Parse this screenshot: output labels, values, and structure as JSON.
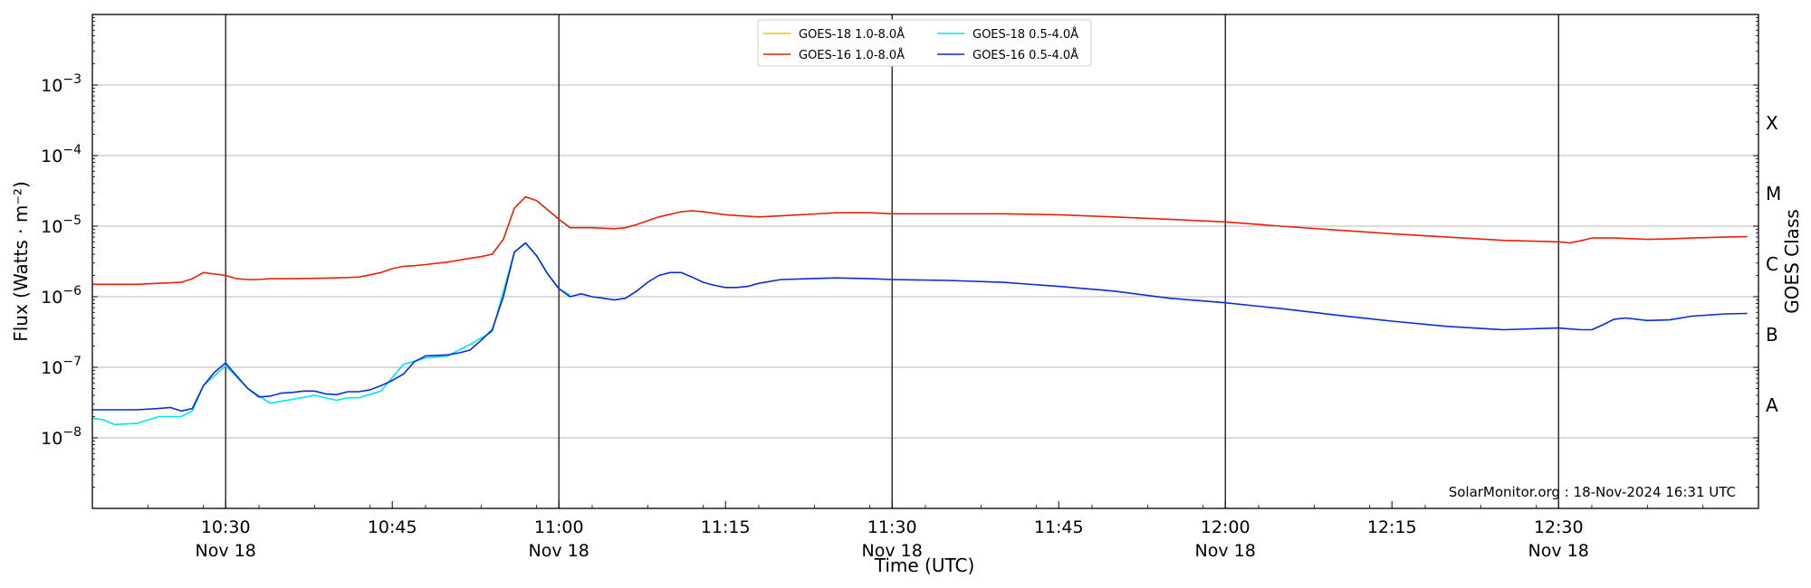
{
  "chart_data": {
    "type": "line",
    "xlabel": "Time (UTC)",
    "ylabel": "Flux (Watts · m⁻²)",
    "y2label": "GOES Class",
    "yscale": "log",
    "ylim": [
      1e-09,
      0.01
    ],
    "xlim": [
      "10:18",
      "12:48"
    ],
    "grid": "horizontal",
    "legend_position": "top-center",
    "x_ticks": [
      {
        "time": "10:30",
        "label": "10:30",
        "date": "Nov 18"
      },
      {
        "time": "10:45",
        "label": "10:45",
        "date": ""
      },
      {
        "time": "11:00",
        "label": "11:00",
        "date": "Nov 18"
      },
      {
        "time": "11:15",
        "label": "11:15",
        "date": ""
      },
      {
        "time": "11:30",
        "label": "11:30",
        "date": "Nov 18"
      },
      {
        "time": "11:45",
        "label": "11:45",
        "date": ""
      },
      {
        "time": "12:00",
        "label": "12:00",
        "date": "Nov 18"
      },
      {
        "time": "12:15",
        "label": "12:15",
        "date": ""
      },
      {
        "time": "12:30",
        "label": "12:30",
        "date": "Nov 18"
      }
    ],
    "y_ticks": [
      {
        "value": 1e-08,
        "exp": "−8"
      },
      {
        "value": 1e-07,
        "exp": "−7"
      },
      {
        "value": 1e-06,
        "exp": "−6"
      },
      {
        "value": 1e-05,
        "exp": "−5"
      },
      {
        "value": 0.0001,
        "exp": "−4"
      },
      {
        "value": 0.001,
        "exp": "−3"
      }
    ],
    "goes_classes": [
      {
        "label": "A",
        "value": 3e-08
      },
      {
        "label": "B",
        "value": 3e-07
      },
      {
        "label": "C",
        "value": 3e-06
      },
      {
        "label": "M",
        "value": 3e-05
      },
      {
        "label": "X",
        "value": 0.0003
      }
    ],
    "vertical_markers": [
      "10:30",
      "11:00",
      "11:30",
      "12:00",
      "12:30"
    ],
    "series": [
      {
        "name": "GOES-18 1.0-8.0Å",
        "color": "#f5c400",
        "x": [],
        "y": []
      },
      {
        "name": "GOES-18 0.5-4.0Å",
        "color": "#00e5ee",
        "x": [
          "10:18",
          "10:19",
          "10:20",
          "10:22",
          "10:24",
          "10:26",
          "10:27",
          "10:28",
          "10:30",
          "10:32",
          "10:34",
          "10:36",
          "10:38",
          "10:40",
          "10:41",
          "10:42",
          "10:44",
          "10:46",
          "10:48",
          "10:50",
          "10:52",
          "10:54",
          "10:56",
          "10:57",
          "10:58",
          "10:59",
          "11:00",
          "11:01"
        ],
        "y": [
          1.9e-08,
          1.8e-08,
          1.55e-08,
          1.6e-08,
          2e-08,
          2e-08,
          2.4e-08,
          5.5e-08,
          1.05e-07,
          5e-08,
          3.1e-08,
          3.5e-08,
          4e-08,
          3.4e-08,
          3.7e-08,
          3.7e-08,
          4.6e-08,
          1.1e-07,
          1.35e-07,
          1.45e-07,
          2.1e-07,
          3.2e-07,
          4.3e-06,
          5.7e-06,
          3.8e-06,
          2.1e-06,
          1.3e-06,
          1.05e-06
        ]
      },
      {
        "name": "GOES-16 1.0-8.0Å",
        "color": "#e8200a",
        "x": [
          "10:18",
          "10:20",
          "10:22",
          "10:24",
          "10:26",
          "10:27",
          "10:28",
          "10:30",
          "10:31",
          "10:32",
          "10:33",
          "10:34",
          "10:36",
          "10:38",
          "10:40",
          "10:42",
          "10:44",
          "10:45",
          "10:46",
          "10:47",
          "10:48",
          "10:50",
          "10:52",
          "10:53",
          "10:54",
          "10:55",
          "10:56",
          "10:57",
          "10:58",
          "10:59",
          "11:00",
          "11:01",
          "11:02",
          "11:03",
          "11:05",
          "11:06",
          "11:07",
          "11:09",
          "11:11",
          "11:12",
          "11:13",
          "11:15",
          "11:18",
          "11:20",
          "11:25",
          "11:28",
          "11:30",
          "11:35",
          "11:40",
          "11:45",
          "11:50",
          "11:55",
          "12:00",
          "12:05",
          "12:10",
          "12:15",
          "12:20",
          "12:25",
          "12:30",
          "12:31",
          "12:32",
          "12:33",
          "12:35",
          "12:36",
          "12:38",
          "12:40",
          "12:42",
          "12:45",
          "12:47"
        ],
        "y": [
          1.5e-06,
          1.5e-06,
          1.5e-06,
          1.55e-06,
          1.6e-06,
          1.8e-06,
          2.2e-06,
          2e-06,
          1.8e-06,
          1.75e-06,
          1.75e-06,
          1.8e-06,
          1.8e-06,
          1.82e-06,
          1.85e-06,
          1.9e-06,
          2.2e-06,
          2.5e-06,
          2.7e-06,
          2.75e-06,
          2.85e-06,
          3.1e-06,
          3.5e-06,
          3.7e-06,
          4e-06,
          6.5e-06,
          1.8e-05,
          2.6e-05,
          2.3e-05,
          1.7e-05,
          1.25e-05,
          9.5e-06,
          9.5e-06,
          9.5e-06,
          9.2e-06,
          9.5e-06,
          1.05e-05,
          1.35e-05,
          1.6e-05,
          1.65e-05,
          1.6e-05,
          1.45e-05,
          1.35e-05,
          1.4e-05,
          1.55e-05,
          1.55e-05,
          1.5e-05,
          1.5e-05,
          1.5e-05,
          1.45e-05,
          1.35e-05,
          1.25e-05,
          1.15e-05,
          1e-05,
          8.8e-06,
          7.8e-06,
          7e-06,
          6.3e-06,
          6e-06,
          5.8e-06,
          6.2e-06,
          6.8e-06,
          6.8e-06,
          6.7e-06,
          6.5e-06,
          6.6e-06,
          6.8e-06,
          7e-06,
          7.1e-06
        ]
      },
      {
        "name": "GOES-16 0.5-4.0Å",
        "color": "#0a2cd8",
        "x": [
          "10:18",
          "10:19",
          "10:20",
          "10:22",
          "10:24",
          "10:25",
          "10:26",
          "10:27",
          "10:28",
          "10:29",
          "10:30",
          "10:31",
          "10:32",
          "10:33",
          "10:34",
          "10:35",
          "10:36",
          "10:37",
          "10:38",
          "10:39",
          "10:40",
          "10:41",
          "10:42",
          "10:43",
          "10:44",
          "10:45",
          "10:46",
          "10:47",
          "10:48",
          "10:50",
          "10:51",
          "10:52",
          "10:53",
          "10:54",
          "10:55",
          "10:56",
          "10:57",
          "10:58",
          "10:59",
          "11:00",
          "11:01",
          "11:02",
          "11:03",
          "11:04",
          "11:05",
          "11:06",
          "11:07",
          "11:08",
          "11:09",
          "11:10",
          "11:11",
          "11:12",
          "11:13",
          "11:14",
          "11:15",
          "11:16",
          "11:17",
          "11:18",
          "11:20",
          "11:25",
          "11:28",
          "11:30",
          "11:35",
          "11:40",
          "11:45",
          "11:50",
          "11:55",
          "12:00",
          "12:05",
          "12:10",
          "12:15",
          "12:20",
          "12:25",
          "12:30",
          "12:31",
          "12:32",
          "12:33",
          "12:34",
          "12:35",
          "12:36",
          "12:38",
          "12:40",
          "12:42",
          "12:45",
          "12:47"
        ],
        "y": [
          2.5e-08,
          2.5e-08,
          2.5e-08,
          2.5e-08,
          2.6e-08,
          2.7e-08,
          2.4e-08,
          2.6e-08,
          5.5e-08,
          8.5e-08,
          1.15e-07,
          7.5e-08,
          5e-08,
          3.8e-08,
          3.9e-08,
          4.3e-08,
          4.4e-08,
          4.6e-08,
          4.6e-08,
          4.2e-08,
          4.1e-08,
          4.5e-08,
          4.5e-08,
          4.8e-08,
          5.5e-08,
          6.5e-08,
          8e-08,
          1.2e-07,
          1.45e-07,
          1.5e-07,
          1.6e-07,
          1.75e-07,
          2.4e-07,
          3.4e-07,
          1e-06,
          4.3e-06,
          5.8e-06,
          3.8e-06,
          2.1e-06,
          1.3e-06,
          1e-06,
          1.1e-06,
          1e-06,
          9.5e-07,
          9e-07,
          9.5e-07,
          1.2e-06,
          1.6e-06,
          2e-06,
          2.2e-06,
          2.2e-06,
          1.9e-06,
          1.6e-06,
          1.45e-06,
          1.35e-06,
          1.35e-06,
          1.4e-06,
          1.55e-06,
          1.75e-06,
          1.85e-06,
          1.8e-06,
          1.75e-06,
          1.7e-06,
          1.6e-06,
          1.4e-06,
          1.2e-06,
          9.5e-07,
          8.2e-07,
          6.8e-07,
          5.5e-07,
          4.5e-07,
          3.8e-07,
          3.4e-07,
          3.6e-07,
          3.5e-07,
          3.4e-07,
          3.4e-07,
          4e-07,
          4.8e-07,
          5e-07,
          4.6e-07,
          4.7e-07,
          5.3e-07,
          5.7e-07,
          5.8e-07
        ]
      }
    ],
    "legend_entries": [
      "GOES-18 1.0-8.0Å",
      "GOES-16 1.0-8.0Å",
      "GOES-18 0.5-4.0Å",
      "GOES-16 0.5-4.0Å"
    ],
    "annotation": "SolarMonitor.org : 18-Nov-2024 16:31 UTC"
  }
}
